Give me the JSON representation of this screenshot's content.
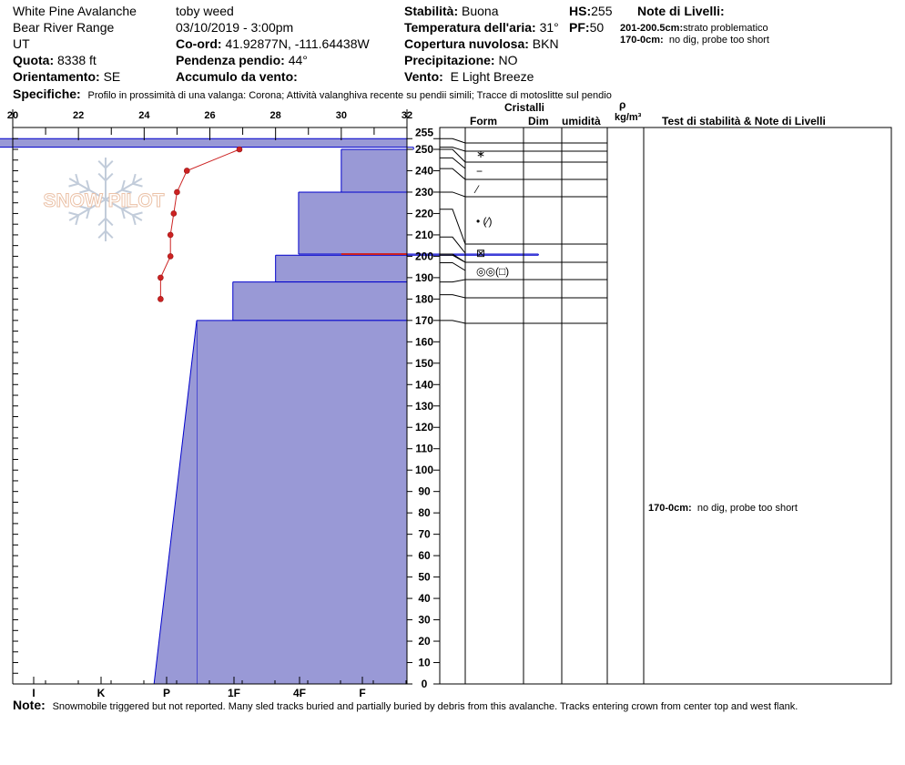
{
  "header": {
    "location": "White Pine Avalanche",
    "range": "Bear River Range",
    "state": "UT",
    "elevation_label": "Quota:",
    "elevation_value": "8338 ft",
    "aspect_label": "Orientamento:",
    "aspect_value": "SE",
    "observer": "toby weed",
    "datetime": "03/10/2019 - 3:00pm",
    "coord_label": "Co-ord:",
    "coord_value": "41.92877N, -111.64438W",
    "slope_label": "Pendenza pendio:",
    "slope_value": "44°",
    "wind_loading_label": "Accumulo da vento:",
    "wind_loading_value": "",
    "stability_label": "Stabilità:",
    "stability_value": "Buona",
    "hs_label": "HS:",
    "hs_value": "255",
    "air_temp_label": "Temperatura dell'aria:",
    "air_temp_value": "31°",
    "pf_label": "PF:",
    "pf_value": "50",
    "sky_label": "Copertura nuvolosa:",
    "sky_value": "BKN",
    "precip_label": "Precipitazione:",
    "precip_value": "NO",
    "wind_label": "Vento:",
    "wind_value": "E Light Breeze",
    "layer_notes_label": "Note di Livelli:",
    "layer_notes": [
      {
        "range": "201-200.5cm:",
        "text": "strato problematico"
      },
      {
        "range": "170-0cm:",
        "text": "no dig, probe too short"
      }
    ],
    "specifics_label": "Specifiche:",
    "specifics_value": "Profilo in prossimità di una valanga: Corona;  Attività valanghiva recente su pendii simili;  Tracce di motoslitte sul pendio"
  },
  "watermark": {
    "text": "SNOW PILOT",
    "color": "#e8b89a"
  },
  "table_headers": {
    "crystals": "Cristalli",
    "form": "Form",
    "size": "Dim",
    "moisture": "umidità",
    "density_symbol": "ρ",
    "density_unit": "kg/m³",
    "tests": "Test di stabilità & Note di Livelli"
  },
  "test_note": {
    "range": "170-0cm:",
    "text": "no dig, probe too short"
  },
  "grain_symbols": [
    {
      "label": "∗",
      "at": 249
    },
    {
      "label": "−",
      "at": 240
    },
    {
      "label": "⁄",
      "at": 232
    },
    {
      "label": "• (⁄)",
      "at": 217
    },
    {
      "label": "⊠",
      "at": 203
    },
    {
      "label": "◎◎(□)",
      "at": 194
    }
  ],
  "note": {
    "label": "Note:",
    "text": "Snowmobile triggered but not reported.  Many sled tracks buried and partially buried by debris from this avalanche.  Tracks entering crown from center top and west flank."
  },
  "chart_data": {
    "type": "area",
    "colors": {
      "hardness_fill": "#9999d6",
      "hardness_edge": "#0000cc",
      "temperature": "#cc2222",
      "problem_layer": "#cc2222"
    },
    "temperature_axis": {
      "ticks": [
        "20",
        "22",
        "24",
        "26",
        "28",
        "30",
        "32"
      ],
      "min": 20,
      "max": 32
    },
    "hardness_axis": {
      "ticks": [
        "I",
        "K",
        "P",
        "1F",
        "4F",
        "F"
      ]
    },
    "depth_axis": {
      "min": 0,
      "max": 260,
      "ticks": [
        "0",
        "10",
        "20",
        "30",
        "40",
        "50",
        "60",
        "70",
        "80",
        "90",
        "100",
        "110",
        "120",
        "130",
        "140",
        "150",
        "160",
        "170",
        "180",
        "190",
        "200",
        "210",
        "220",
        "230",
        "240",
        "250",
        "255"
      ]
    },
    "hardness_layers": [
      {
        "bottom": 251,
        "top": 255,
        "hardness": 18.6
      },
      {
        "bottom": 250,
        "top": 251,
        "hardness": 32.2
      },
      {
        "bottom": 230,
        "top": 250,
        "hardness": 30.0
      },
      {
        "bottom": 201,
        "top": 230,
        "hardness": 28.7
      },
      {
        "bottom": 200.5,
        "top": 201,
        "hardness": 36.0
      },
      {
        "bottom": 188,
        "top": 200.5,
        "hardness": 28.0
      },
      {
        "bottom": 170,
        "top": 188,
        "hardness": 26.7
      },
      {
        "bottom": 0,
        "top": 170,
        "hardness": 25.6
      }
    ],
    "layer_boundaries": [
      255,
      251,
      250,
      246,
      241,
      230,
      222,
      209,
      201,
      200.5,
      197,
      188,
      182,
      170
    ],
    "problem_layer": {
      "bottom": 200.5,
      "top": 201
    },
    "temperature_profile": [
      {
        "depth": 250,
        "temp": 26.9
      },
      {
        "depth": 240,
        "temp": 25.3
      },
      {
        "depth": 230,
        "temp": 25.0
      },
      {
        "depth": 220,
        "temp": 24.9
      },
      {
        "depth": 210,
        "temp": 24.8
      },
      {
        "depth": 200,
        "temp": 24.8
      },
      {
        "depth": 190,
        "temp": 24.5
      },
      {
        "depth": 180,
        "temp": 24.5
      }
    ]
  }
}
